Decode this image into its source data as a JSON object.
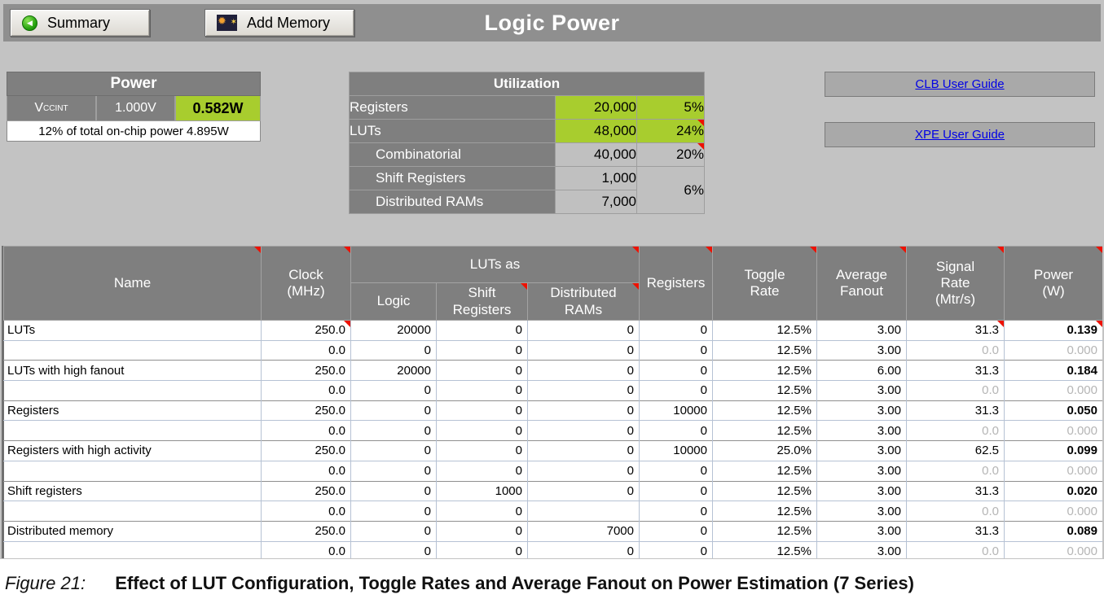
{
  "colors": {
    "accent_green": "#a8cd2e",
    "header_gray": "#7f7f7f",
    "silver": "#c0c0c0",
    "comment_red": "#ee1100",
    "link_blue": "#0000e6"
  },
  "topbar": {
    "summary_button": "Summary",
    "add_memory_button": "Add Memory",
    "title": "Logic Power"
  },
  "power_panel": {
    "header": "Power",
    "rail_main": "V",
    "rail_sub": "CCINT",
    "voltage": "1.000V",
    "power": "0.582W",
    "note": "12% of total on-chip power 4.895W"
  },
  "utilization": {
    "header": "Utilization",
    "rows": [
      {
        "label": "Registers",
        "value": "20,000",
        "pct": "5%"
      },
      {
        "label": "LUTs",
        "value": "48,000",
        "pct": "24%"
      },
      {
        "label": "Combinatorial",
        "value": "40,000",
        "pct": "20%"
      },
      {
        "label": "Shift Registers",
        "value": "1,000"
      },
      {
        "label": "Distributed RAMs",
        "value": "7,000"
      }
    ],
    "merged_pct": "6%"
  },
  "links": {
    "clb": "CLB User Guide",
    "xpe": "XPE User Guide"
  },
  "logic_table": {
    "header": {
      "name": "Name",
      "clock": "Clock\n(MHz)",
      "luts_as": "LUTs as",
      "logic": "Logic",
      "shift": "Shift\nRegisters",
      "dist": "Distributed\nRAMs",
      "regs": "Registers",
      "toggle": "Toggle\nRate",
      "fanout": "Average\nFanout",
      "signal": "Signal\nRate\n(Mtr/s)",
      "power": "Power\n(W)"
    },
    "rows": [
      {
        "name": "LUTs",
        "clock": "250.0",
        "logic": "20000",
        "shift": "0",
        "dist": "0",
        "regs": "0",
        "toggle": "12.5%",
        "fanout": "3.00",
        "signal": "31.3",
        "power": "0.139",
        "active": true,
        "markers": [
          "clock",
          "signal",
          "power"
        ]
      },
      {
        "name": "",
        "clock": "0.0",
        "logic": "0",
        "shift": "0",
        "dist": "0",
        "regs": "0",
        "toggle": "12.5%",
        "fanout": "3.00",
        "signal": "0.0",
        "power": "0.000",
        "active": false
      },
      {
        "name": "LUTs with high fanout",
        "clock": "250.0",
        "logic": "20000",
        "shift": "0",
        "dist": "0",
        "regs": "0",
        "toggle": "12.5%",
        "fanout": "6.00",
        "signal": "31.3",
        "power": "0.184",
        "active": true
      },
      {
        "name": "",
        "clock": "0.0",
        "logic": "0",
        "shift": "0",
        "dist": "0",
        "regs": "0",
        "toggle": "12.5%",
        "fanout": "3.00",
        "signal": "0.0",
        "power": "0.000",
        "active": false
      },
      {
        "name": "Registers",
        "clock": "250.0",
        "logic": "0",
        "shift": "0",
        "dist": "0",
        "regs": "10000",
        "toggle": "12.5%",
        "fanout": "3.00",
        "signal": "31.3",
        "power": "0.050",
        "active": true
      },
      {
        "name": "",
        "clock": "0.0",
        "logic": "0",
        "shift": "0",
        "dist": "0",
        "regs": "0",
        "toggle": "12.5%",
        "fanout": "3.00",
        "signal": "0.0",
        "power": "0.000",
        "active": false
      },
      {
        "name": "Registers with high activity",
        "clock": "250.0",
        "logic": "0",
        "shift": "0",
        "dist": "0",
        "regs": "10000",
        "toggle": "25.0%",
        "fanout": "3.00",
        "signal": "62.5",
        "power": "0.099",
        "active": true
      },
      {
        "name": "",
        "clock": "0.0",
        "logic": "0",
        "shift": "0",
        "dist": "0",
        "regs": "0",
        "toggle": "12.5%",
        "fanout": "3.00",
        "signal": "0.0",
        "power": "0.000",
        "active": false
      },
      {
        "name": "Shift registers",
        "clock": "250.0",
        "logic": "0",
        "shift": "1000",
        "dist": "0",
        "regs": "0",
        "toggle": "12.5%",
        "fanout": "3.00",
        "signal": "31.3",
        "power": "0.020",
        "active": true
      },
      {
        "name": "",
        "clock": "0.0",
        "logic": "0",
        "shift": "0",
        "dist": "",
        "regs": "0",
        "toggle": "12.5%",
        "fanout": "3.00",
        "signal": "0.0",
        "power": "0.000",
        "active": false
      },
      {
        "name": "Distributed memory",
        "clock": "250.0",
        "logic": "0",
        "shift": "0",
        "dist": "7000",
        "regs": "0",
        "toggle": "12.5%",
        "fanout": "3.00",
        "signal": "31.3",
        "power": "0.089",
        "active": true
      },
      {
        "name": "",
        "clock": "0.0",
        "logic": "0",
        "shift": "0",
        "dist": "0",
        "regs": "0",
        "toggle": "12.5%",
        "fanout": "3.00",
        "signal": "0.0",
        "power": "0.000",
        "active": false
      }
    ]
  },
  "caption": {
    "label": "Figure 21:",
    "text": "Effect of LUT Configuration, Toggle Rates and Average Fanout on Power Estimation (7 Series)"
  }
}
